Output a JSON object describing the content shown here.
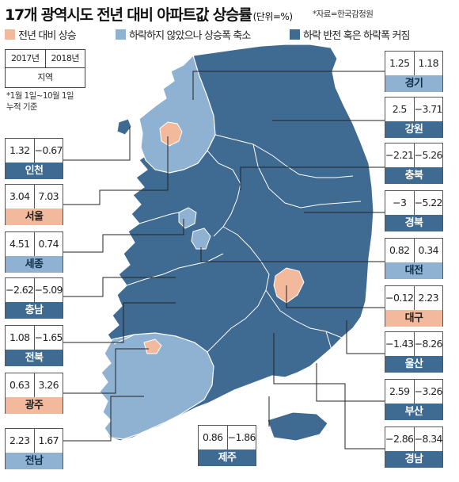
{
  "header": {
    "title": "17개 광역시도 전년 대비 아파트값 상승률",
    "unit": "(단위=%)",
    "source": "*자료=한국감정원"
  },
  "legend": [
    {
      "label": "전년 대비 상승",
      "color": "#f2b99c"
    },
    {
      "label": "하락하지 않았으나 상승폭 축소",
      "color": "#8fb2d2"
    },
    {
      "label": "하락 반전 혹은 하락폭 커짐",
      "color": "#3f6a91"
    }
  ],
  "key": {
    "col1": "2017년",
    "col2": "2018년",
    "label": "지역"
  },
  "note": [
    "*1월 1일~10월 1일",
    "누적 기준"
  ],
  "regions": [
    {
      "name": "경기",
      "v2017": "1.25",
      "v2018": "1.18",
      "category": 2
    },
    {
      "name": "강원",
      "v2017": "2.5",
      "v2018": "−3.71",
      "category": 3
    },
    {
      "name": "충북",
      "v2017": "−2.21",
      "v2018": "−5.26",
      "category": 3
    },
    {
      "name": "경북",
      "v2017": "−3",
      "v2018": "−5.22",
      "category": 3
    },
    {
      "name": "대전",
      "v2017": "0.82",
      "v2018": "0.34",
      "category": 2
    },
    {
      "name": "대구",
      "v2017": "−0.12",
      "v2018": "2.23",
      "category": 1
    },
    {
      "name": "울산",
      "v2017": "−1.43",
      "v2018": "−8.26",
      "category": 3
    },
    {
      "name": "부산",
      "v2017": "2.59",
      "v2018": "−3.26",
      "category": 3
    },
    {
      "name": "경남",
      "v2017": "−2.86",
      "v2018": "−8.34",
      "category": 3
    },
    {
      "name": "인천",
      "v2017": "1.32",
      "v2018": "−0.67",
      "category": 3
    },
    {
      "name": "서울",
      "v2017": "3.04",
      "v2018": "7.03",
      "category": 1
    },
    {
      "name": "세종",
      "v2017": "4.51",
      "v2018": "0.74",
      "category": 2
    },
    {
      "name": "충남",
      "v2017": "−2.62",
      "v2018": "−5.09",
      "category": 3
    },
    {
      "name": "전북",
      "v2017": "1.08",
      "v2018": "−1.65",
      "category": 3
    },
    {
      "name": "광주",
      "v2017": "0.63",
      "v2018": "3.26",
      "category": 1
    },
    {
      "name": "전남",
      "v2017": "2.23",
      "v2018": "1.67",
      "category": 2
    },
    {
      "name": "제주",
      "v2017": "0.86",
      "v2018": "−1.86",
      "category": 3
    }
  ]
}
